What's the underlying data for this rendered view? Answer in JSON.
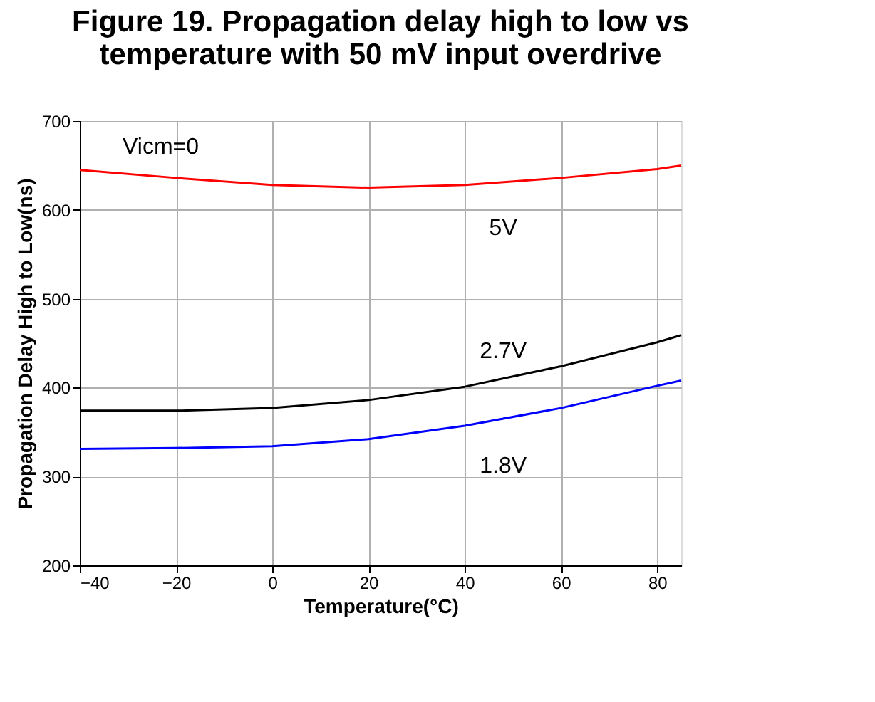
{
  "chart_data": {
    "type": "line",
    "title": "Figure 19. Propagation delay high to low vs temperature with 50 mV input overdrive",
    "xlabel": "Temperature(°C)",
    "ylabel": "Propagation Delay High to Low(ns)",
    "x": [
      -40,
      -20,
      0,
      20,
      40,
      60,
      80,
      85
    ],
    "series": [
      {
        "name": "5V",
        "color": "#ff0000",
        "values": [
          645,
          636,
          628,
          625,
          628,
          636,
          646,
          650
        ]
      },
      {
        "name": "2.7V",
        "color": "#000000",
        "values": [
          374,
          374,
          377,
          386,
          401,
          424,
          451,
          459
        ]
      },
      {
        "name": "1.8V",
        "color": "#0000ff",
        "values": [
          331,
          332,
          334,
          342,
          357,
          377,
          402,
          408
        ]
      }
    ],
    "annotations": [
      "Vicm=0"
    ],
    "xlim": [
      -40,
      85
    ],
    "xticks": [
      -40,
      -20,
      0,
      20,
      40,
      60,
      80
    ],
    "ylim": [
      200,
      700
    ],
    "yticks": [
      200,
      300,
      400,
      500,
      600,
      700
    ],
    "grid": true,
    "legend": false,
    "marker": "none",
    "line_style": "solid"
  }
}
